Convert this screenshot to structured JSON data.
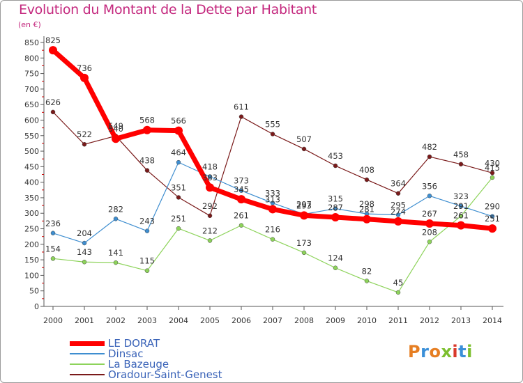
{
  "title": "Evolution du Montant de la Dette par Habitant",
  "unit": "(en €)",
  "brand": {
    "text": "Proxiti",
    "colors": [
      "#e67e22",
      "#3a8fd8",
      "#e67e22",
      "#7cbf2e",
      "#d9392b",
      "#3a8fd8",
      "#7cbf2e"
    ]
  },
  "chart_data": {
    "type": "line",
    "x": [
      "2000",
      "2001",
      "2002",
      "2003",
      "2004",
      "2005",
      "2006",
      "2007",
      "2008",
      "2009",
      "2010",
      "2011",
      "2012",
      "2013",
      "2014"
    ],
    "ylim": [
      0,
      850
    ],
    "yticks": [
      0,
      50,
      100,
      150,
      200,
      250,
      300,
      350,
      400,
      450,
      500,
      550,
      600,
      650,
      700,
      750,
      800,
      850
    ],
    "grid": false,
    "legend_position": "bottom-left",
    "series": [
      {
        "name": "LE DORAT",
        "color": "#ff0000",
        "values": [
          825,
          736,
          540,
          568,
          566,
          383,
          345,
          313,
          293,
          287,
          281,
          274,
          267,
          261,
          251
        ]
      },
      {
        "name": "Dinsac",
        "color": "#3e8ed0",
        "values": [
          236,
          204,
          282,
          243,
          464,
          418,
          373,
          333,
          297,
          315,
          298,
          295,
          356,
          323,
          290
        ]
      },
      {
        "name": "La Bazeuge",
        "color": "#8dd35a",
        "values": [
          154,
          143,
          141,
          115,
          251,
          212,
          261,
          216,
          173,
          124,
          82,
          45,
          208,
          291,
          415
        ]
      },
      {
        "name": "Oradour-Saint-Genest",
        "color": "#7a1a1a",
        "values": [
          626,
          522,
          549,
          438,
          351,
          292,
          611,
          555,
          507,
          453,
          408,
          364,
          482,
          458,
          430
        ]
      }
    ]
  }
}
